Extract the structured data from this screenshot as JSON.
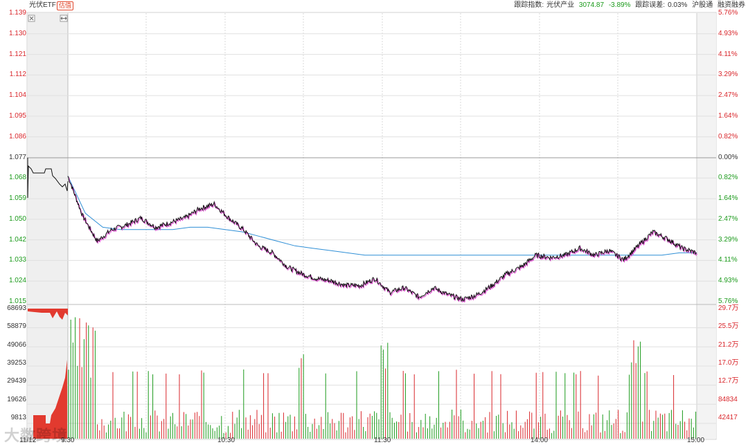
{
  "header": {
    "name": "光伏ETF",
    "badge": "估值",
    "index_label": "跟踪指数:",
    "index_name": "光伏产业",
    "index_value": "3074.87",
    "index_change": "-3.89%",
    "error_label": "跟踪误差:",
    "error_value": "0.03%",
    "tag1": "沪股通",
    "tag2": "融资融券"
  },
  "price_axis": {
    "left": [
      "1.139",
      "1.130",
      "1.121",
      "1.112",
      "1.104",
      "1.095",
      "1.086",
      "1.077",
      "1.068",
      "1.059",
      "1.050",
      "1.042",
      "1.033",
      "1.024",
      "1.015"
    ],
    "right": [
      "5.76%",
      "4.93%",
      "4.11%",
      "3.29%",
      "2.47%",
      "1.64%",
      "0.82%",
      "0.00%",
      "0.82%",
      "1.64%",
      "2.47%",
      "3.29%",
      "4.11%",
      "4.93%",
      "5.76%"
    ],
    "ref": "1.077"
  },
  "volume_axis": {
    "left": [
      "68693",
      "58879",
      "49066",
      "39253",
      "29439",
      "19626",
      "9813"
    ],
    "right": [
      "29.7万",
      "25.5万",
      "21.2万",
      "17.0万",
      "12.7万",
      "84834",
      "42417"
    ]
  },
  "time_axis": [
    "11/12",
    "9:30",
    "10:30",
    "11:30",
    "14:00",
    "15:00"
  ],
  "watermark": "大数跨境",
  "chart_data": {
    "type": "line",
    "series": [
      {
        "values": [
          1.069,
          1.052,
          1.041,
          1.046,
          1.048,
          1.051,
          1.047,
          1.049,
          1.051,
          1.055,
          1.057,
          1.051,
          1.046,
          1.039,
          1.036,
          1.03,
          1.027,
          1.025,
          1.024,
          1.022,
          1.022,
          1.025,
          1.019,
          1.021,
          1.017,
          1.021,
          1.018,
          1.016,
          1.018,
          1.022,
          1.027,
          1.03,
          1.035,
          1.034,
          1.035,
          1.038,
          1.035,
          1.037,
          1.033,
          1.039,
          1.045,
          1.042,
          1.038,
          1.036
        ]
      },
      {
        "values": [
          1.069,
          1.053,
          1.047,
          1.046,
          1.046,
          1.046,
          1.046,
          1.047,
          1.047,
          1.046,
          1.045,
          1.043,
          1.041,
          1.039,
          1.038,
          1.037,
          1.036,
          1.035,
          1.035,
          1.035,
          1.035,
          1.035,
          1.035,
          1.035,
          1.035,
          1.035,
          1.035,
          1.035,
          1.035,
          1.035,
          1.035,
          1.035,
          1.035,
          1.035,
          1.035,
          1.036,
          1.036
        ]
      }
    ],
    "ylim": [
      1.015,
      1.139
    ]
  }
}
